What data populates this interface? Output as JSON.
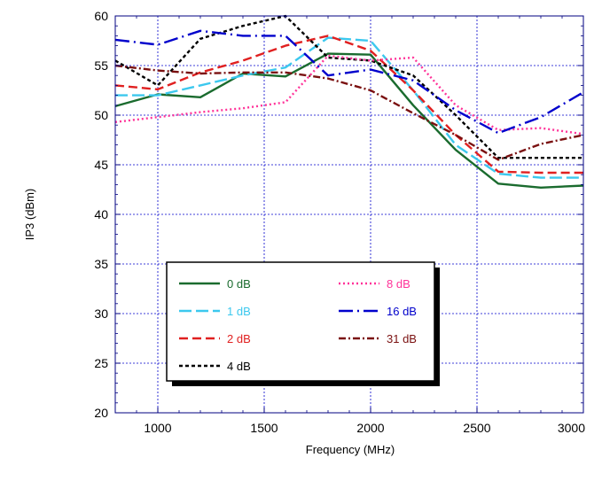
{
  "chart_data": {
    "type": "line",
    "title": "",
    "xlabel": "Frequency (MHz)",
    "ylabel": "IP3 (dBm)",
    "xlim": [
      800,
      3000
    ],
    "ylim": [
      20,
      60
    ],
    "xticks": [
      1000,
      1500,
      2000,
      2500,
      3000
    ],
    "yticks": [
      20,
      25,
      30,
      35,
      40,
      45,
      50,
      55,
      60
    ],
    "grid": true,
    "legend_position": "lower-left",
    "series": [
      {
        "name": "0 dB",
        "color": "#1a6b2e",
        "dash": "solid",
        "x": [
          800,
          1000,
          1200,
          1400,
          1600,
          1800,
          2000,
          2200,
          2400,
          2600,
          2800,
          3000
        ],
        "y": [
          50.9,
          52.1,
          51.8,
          54.2,
          53.9,
          56.2,
          56.1,
          51.0,
          46.5,
          43.1,
          42.7,
          42.9
        ]
      },
      {
        "name": "1 dB",
        "color": "#3cc8ee",
        "dash": "longdash",
        "x": [
          800,
          1000,
          1200,
          1400,
          1600,
          1800,
          2000,
          2200,
          2400,
          2600,
          2800,
          3000
        ],
        "y": [
          52.0,
          52.0,
          53.0,
          54.0,
          54.8,
          57.8,
          57.5,
          52.5,
          47.0,
          44.1,
          43.7,
          43.7
        ]
      },
      {
        "name": "2 dB",
        "color": "#e02020",
        "dash": "dash",
        "x": [
          800,
          1000,
          1200,
          1400,
          1600,
          1800,
          2000,
          2200,
          2400,
          2600,
          2800,
          3000
        ],
        "y": [
          53.0,
          52.6,
          54.3,
          55.5,
          57.0,
          58.0,
          56.5,
          52.5,
          48.0,
          44.3,
          44.2,
          44.2
        ]
      },
      {
        "name": "4 dB",
        "color": "#000000",
        "dash": "shortdash",
        "x": [
          800,
          1000,
          1200,
          1400,
          1600,
          1800,
          2000,
          2200,
          2400,
          2600,
          2800,
          3000
        ],
        "y": [
          55.5,
          53.0,
          57.7,
          59.0,
          60.0,
          55.8,
          55.5,
          54.0,
          50.0,
          45.7,
          45.7,
          45.7
        ]
      },
      {
        "name": "8 dB",
        "color": "#ff3399",
        "dash": "dot",
        "x": [
          800,
          1000,
          1200,
          1400,
          1600,
          1800,
          2000,
          2200,
          2400,
          2600,
          2800,
          3000
        ],
        "y": [
          49.3,
          49.8,
          50.3,
          50.7,
          51.3,
          56.0,
          55.5,
          55.8,
          51.0,
          48.5,
          48.7,
          48.1
        ]
      },
      {
        "name": "16 dB",
        "color": "#0000cc",
        "dash": "dashdotlong",
        "x": [
          800,
          1000,
          1200,
          1400,
          1600,
          1800,
          2000,
          2200,
          2400,
          2600,
          2800,
          3000
        ],
        "y": [
          57.6,
          57.1,
          58.5,
          58.0,
          58.0,
          54.0,
          54.6,
          53.5,
          50.5,
          48.2,
          49.8,
          52.3
        ]
      },
      {
        "name": "31 dB",
        "color": "#7a1010",
        "dash": "dashdot",
        "x": [
          800,
          1000,
          1200,
          1400,
          1600,
          1800,
          2000,
          2200,
          2400,
          2600,
          2800,
          3000
        ],
        "y": [
          55.0,
          54.5,
          54.2,
          54.3,
          54.3,
          53.7,
          52.5,
          50.2,
          48.0,
          45.5,
          47.1,
          48.0
        ]
      }
    ]
  }
}
